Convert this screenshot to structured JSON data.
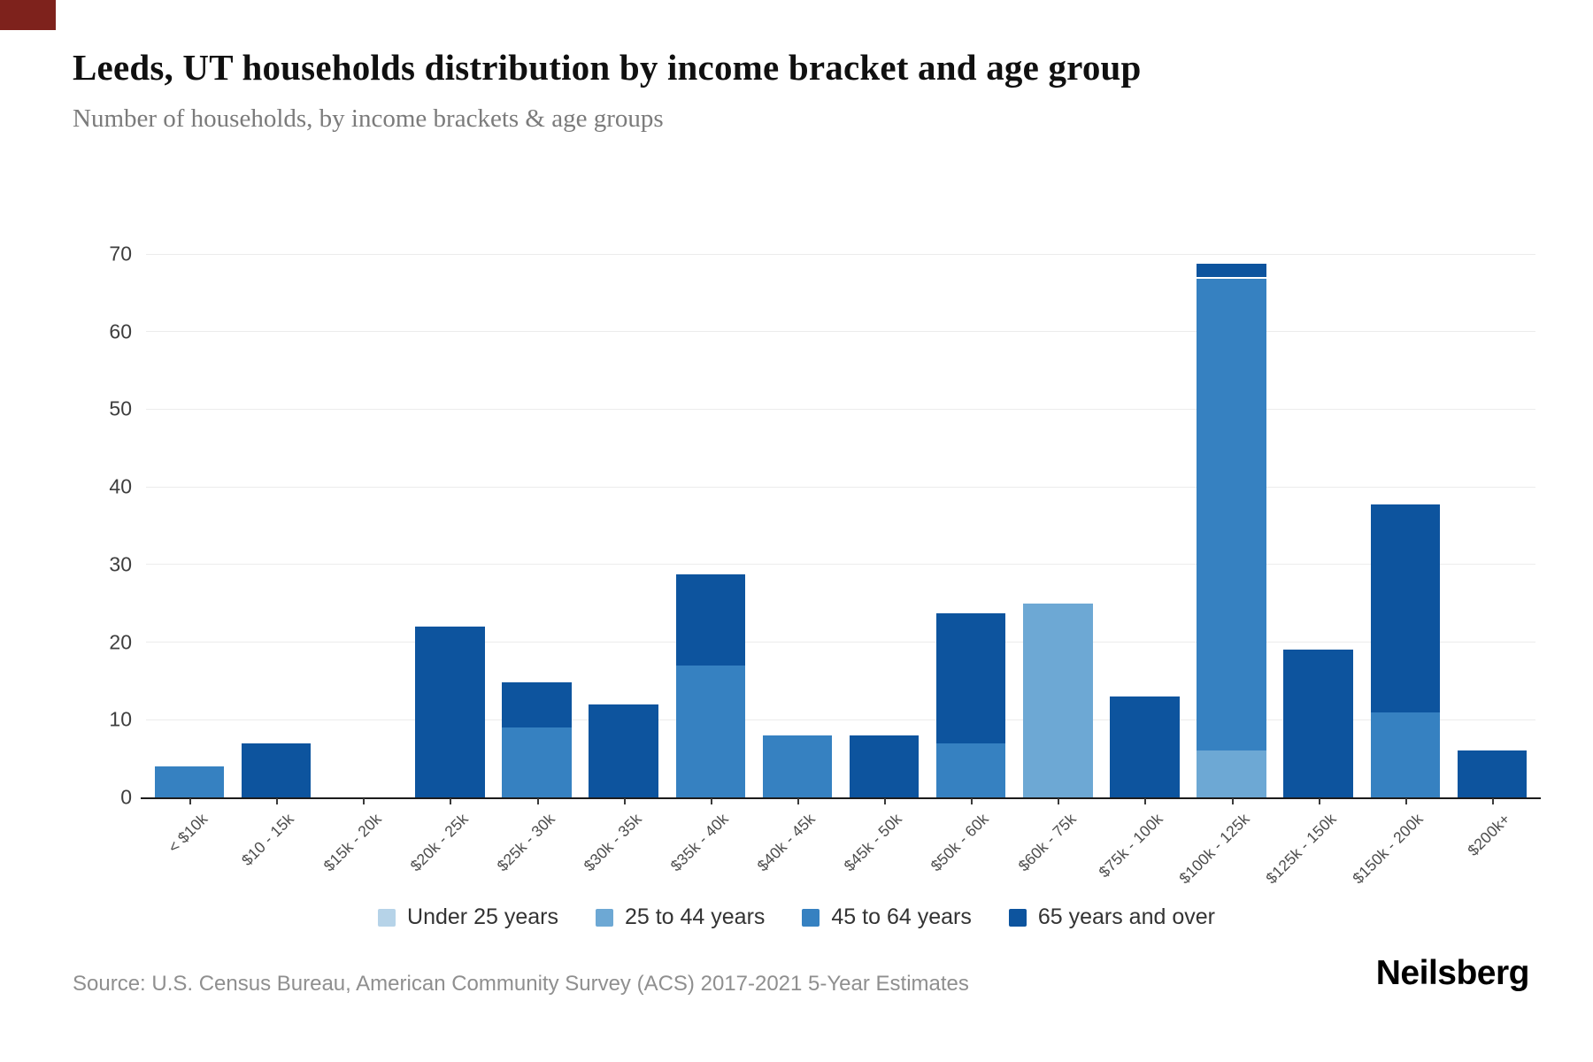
{
  "page": {
    "source": "Source: U.S. Census Bureau, American Community Survey (ACS) 2017-2021 5-Year Estimates",
    "logo": "Neilsberg"
  },
  "chart_data": {
    "type": "bar",
    "stacked": true,
    "title": "Leeds, UT households distribution by income bracket and age group",
    "subtitle": "Number of households, by income brackets & age groups",
    "xlabel": "",
    "ylabel": "",
    "ylim": [
      0,
      70
    ],
    "yticks": [
      0,
      10,
      20,
      30,
      40,
      50,
      60,
      70
    ],
    "grid": true,
    "legend_position": "bottom",
    "categories": [
      "< $10k",
      "$10 - 15k",
      "$15k - 20k",
      "$20k - 25k",
      "$25k - 30k",
      "$30k - 35k",
      "$35k - 40k",
      "$40k - 45k",
      "$45k - 50k",
      "$50k - 60k",
      "$60k - 75k",
      "$75k - 100k",
      "$100k - 125k",
      "$125k - 150k",
      "$150k - 200k",
      "$200k+"
    ],
    "series": [
      {
        "name": "Under 25 years",
        "color": "#b6d3e8",
        "values": [
          0,
          0,
          0,
          0,
          0,
          0,
          0,
          0,
          0,
          0,
          0,
          0,
          0,
          0,
          0,
          0
        ]
      },
      {
        "name": "25 to 44 years",
        "color": "#6da8d4",
        "values": [
          0,
          0,
          0,
          0,
          0,
          0,
          0,
          0,
          0,
          0,
          25,
          0,
          6,
          0,
          0,
          0
        ]
      },
      {
        "name": "45 to 64 years",
        "color": "#3681c1",
        "values": [
          4,
          0,
          0,
          0,
          9,
          0,
          17,
          8,
          0,
          7,
          0,
          0,
          61,
          0,
          11,
          0
        ]
      },
      {
        "name": "65 years and over",
        "color": "#0d549e",
        "values": [
          0,
          7,
          0,
          22,
          6,
          12,
          12,
          0,
          8,
          17,
          0,
          13,
          2,
          19,
          27,
          6
        ]
      }
    ],
    "totals": [
      4,
      7,
      0,
      22,
      15,
      12,
      29,
      8,
      8,
      24,
      25,
      13,
      69,
      19,
      38,
      6
    ]
  }
}
